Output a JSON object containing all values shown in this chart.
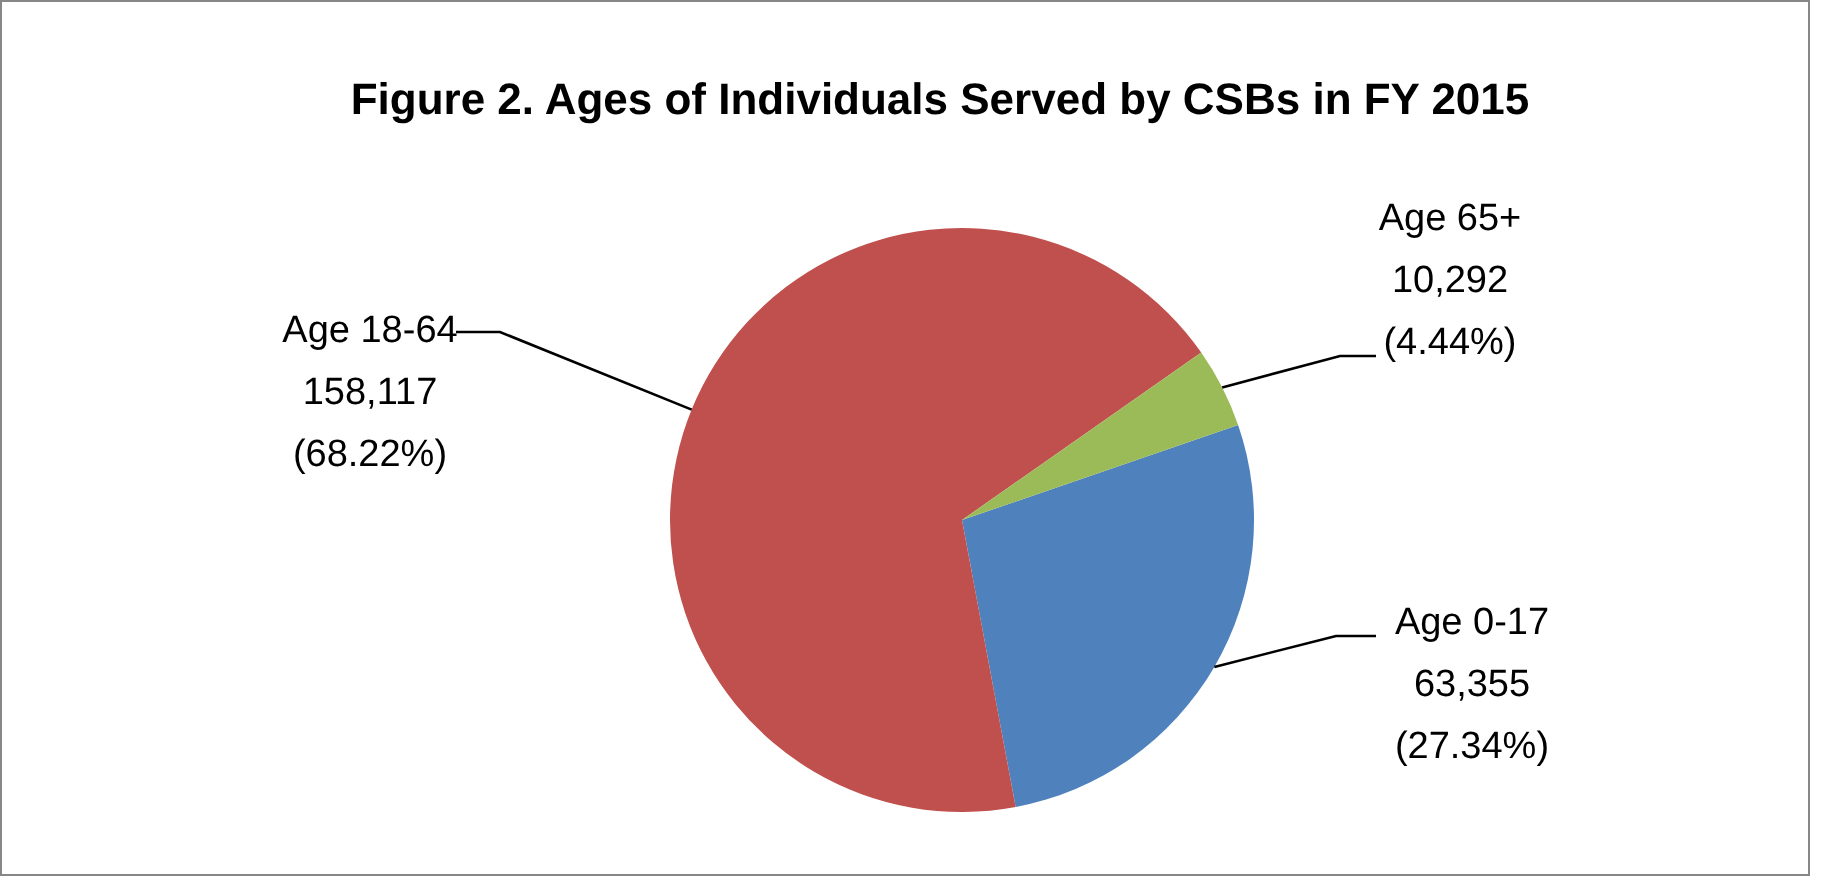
{
  "chart_data": {
    "type": "pie",
    "title": "Figure 2. Ages of Individuals Served by CSBs in FY 2015",
    "categories": [
      "Age 0-17",
      "Age 18-64",
      "Age 65+"
    ],
    "values": [
      63355,
      158117,
      10292
    ],
    "colors": [
      "#4f81bd",
      "#c0504d",
      "#9bbb59"
    ],
    "value_labels": [
      "63,355\n(27.34%)",
      "158,117\n(68.22%)",
      "10,292\n(4.44%)"
    ]
  }
}
